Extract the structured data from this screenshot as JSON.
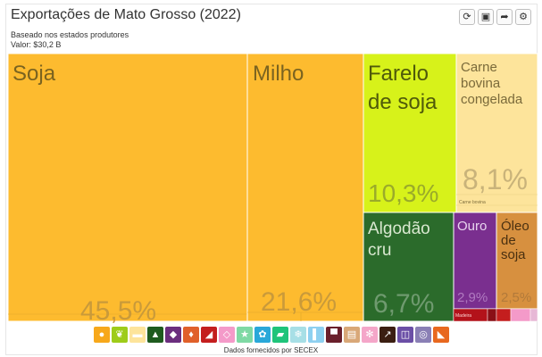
{
  "header": {
    "title": "Exportações de Mato Grosso (2022)",
    "subtitle": "Baseado nos estados produtores",
    "value_line": "Valor: $30,2 B"
  },
  "toolbar": [
    {
      "name": "refresh-icon",
      "glyph": "⟳"
    },
    {
      "name": "save-icon",
      "glyph": "▣"
    },
    {
      "name": "share-icon",
      "glyph": "➦"
    },
    {
      "name": "settings-icon",
      "glyph": "⚙"
    }
  ],
  "chart_data": {
    "type": "treemap",
    "title": "Exportações de Mato Grosso (2022)",
    "total": "$30,2 B",
    "items": [
      {
        "name": "Soja",
        "share": 45.5,
        "share_label": "45,5%",
        "color": "#fdbb2f"
      },
      {
        "name": "Milho",
        "share": 21.6,
        "share_label": "21,6%",
        "color": "#fdbb2f"
      },
      {
        "name": "Farelo de soja",
        "share": 10.3,
        "share_label": "10,3%",
        "color": "#d7f21a"
      },
      {
        "name": "Carne bovina congelada",
        "share": 8.1,
        "share_label": "8,1%",
        "color": "#fde49b"
      },
      {
        "name": "Algodão cru",
        "share": 6.7,
        "share_label": "6,7%",
        "color": "#2b6b2b"
      },
      {
        "name": "Ouro",
        "share": 2.9,
        "share_label": "2,9%",
        "color": "#7a2f8f"
      },
      {
        "name": "Óleo de soja",
        "share": 2.5,
        "share_label": "2,5%",
        "color": "#d7903f"
      }
    ],
    "minor_labels": [
      "Carne bovina",
      "Madeira"
    ]
  },
  "legend": [
    {
      "name": "animal-products-icon",
      "color": "#f7a81b",
      "glyph": "●"
    },
    {
      "name": "vegetable-products-icon",
      "color": "#9ecc1a",
      "glyph": "❦"
    },
    {
      "name": "animal-fats-icon",
      "color": "#fde49b",
      "glyph": "▬"
    },
    {
      "name": "foodstuffs-icon",
      "color": "#1e5b1e",
      "glyph": "▲"
    },
    {
      "name": "mineral-products-icon",
      "color": "#6b2e7e",
      "glyph": "◆"
    },
    {
      "name": "chemical-products-icon",
      "color": "#e0602a",
      "glyph": "♦"
    },
    {
      "name": "plastics-rubbers-icon",
      "color": "#c41e1e",
      "glyph": "◢"
    },
    {
      "name": "animal-hides-icon",
      "color": "#f49ac9",
      "glyph": "◇"
    },
    {
      "name": "wood-products-icon",
      "color": "#7fd9a4",
      "glyph": "★"
    },
    {
      "name": "paper-goods-icon",
      "color": "#2aa8d9",
      "glyph": "✿"
    },
    {
      "name": "textiles-icon",
      "color": "#1fc47a",
      "glyph": "▰"
    },
    {
      "name": "footwear-icon",
      "color": "#a7dfe6",
      "glyph": "❄"
    },
    {
      "name": "stone-glass-icon",
      "color": "#8ed0f0",
      "glyph": "▌"
    },
    {
      "name": "precious-metals-icon",
      "color": "#6a1f2b",
      "glyph": "▀"
    },
    {
      "name": "metals-icon",
      "color": "#d9a878",
      "glyph": "▤"
    },
    {
      "name": "machines-icon",
      "color": "#f4a6c9",
      "glyph": "✻"
    },
    {
      "name": "transportation-icon",
      "color": "#3b1e12",
      "glyph": "↗"
    },
    {
      "name": "instruments-icon",
      "color": "#6b4fa6",
      "glyph": "◫"
    },
    {
      "name": "weapons-icon",
      "color": "#8a7fb5",
      "glyph": "◎"
    },
    {
      "name": "miscellaneous-icon",
      "color": "#e8681f",
      "glyph": "◣"
    }
  ],
  "footer": {
    "credit": "Dados fornecidos por SECEX"
  }
}
